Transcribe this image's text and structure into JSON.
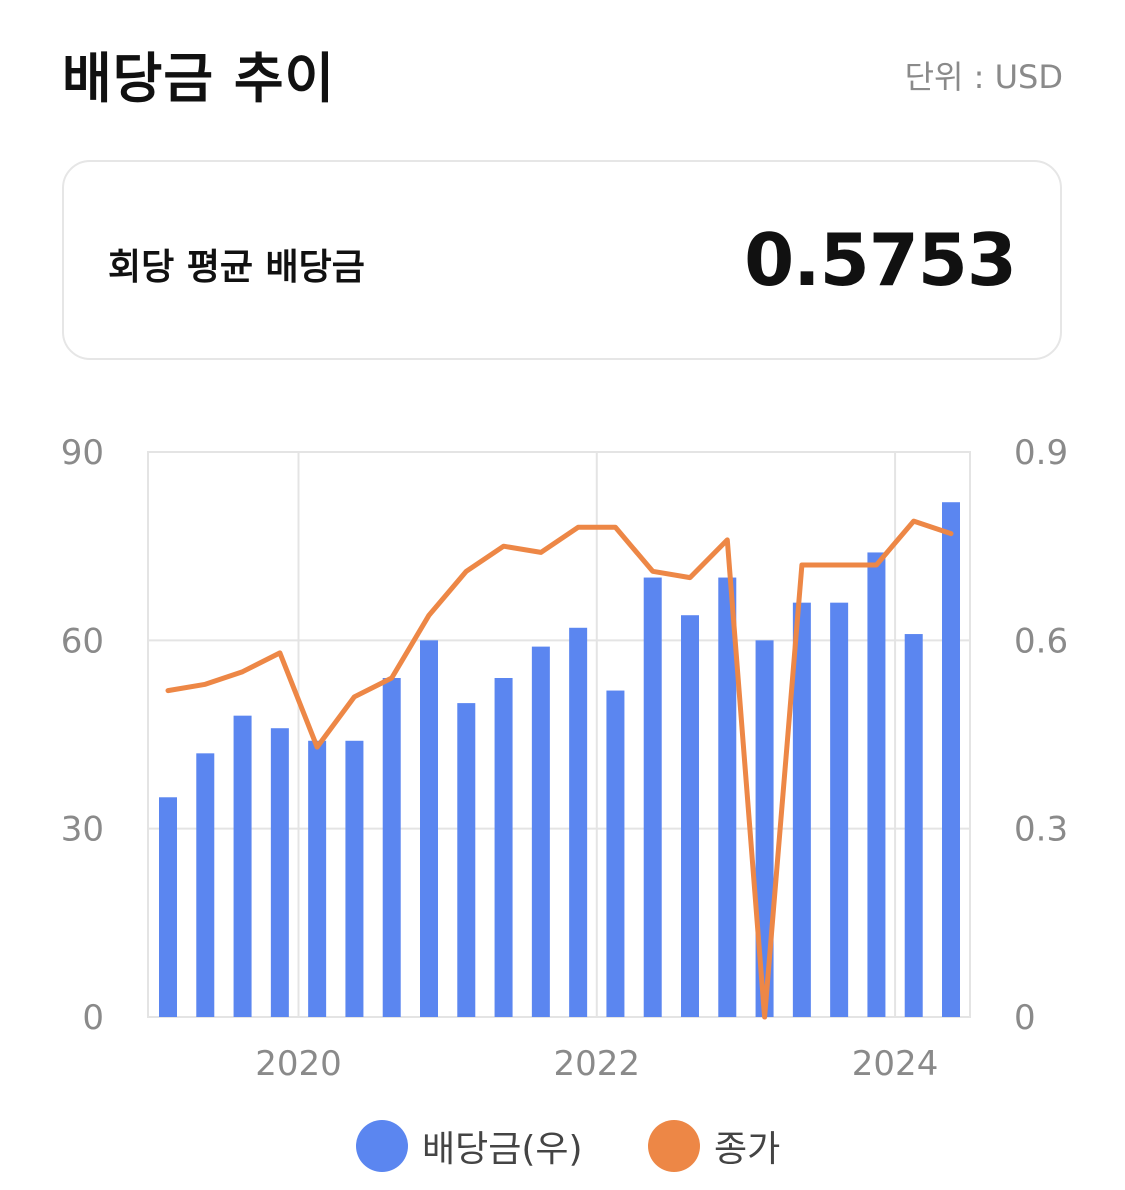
{
  "header": {
    "title": "배당금 추이",
    "unit": "단위 : USD"
  },
  "summary": {
    "label": "회당 평균 배당금",
    "value": "0.5753"
  },
  "legend": {
    "bar_label": "배당금(우)",
    "line_label": "종가"
  },
  "colors": {
    "bar": "#5b86f0",
    "line": "#ed8746",
    "grid": "#e4e4e4",
    "axis_text": "#8a8a8a"
  },
  "chart_data": {
    "type": "bar",
    "x_tick_labels": [
      "2020",
      "2022",
      "2024"
    ],
    "y_left": {
      "ticks": [
        "0",
        "30",
        "60",
        "90"
      ],
      "range": [
        0,
        90
      ]
    },
    "y_right": {
      "ticks": [
        "0",
        "0.3",
        "0.6",
        "0.9"
      ],
      "range": [
        0,
        0.9
      ]
    },
    "grid": true,
    "legend_position": "bottom",
    "series": [
      {
        "name": "배당금(우)",
        "kind": "bar",
        "axis": "right",
        "values": [
          0.35,
          0.42,
          0.48,
          0.46,
          0.44,
          0.44,
          0.54,
          0.6,
          0.5,
          0.54,
          0.59,
          0.62,
          0.52,
          0.7,
          0.64,
          0.7,
          0.6,
          0.66,
          0.66,
          0.74,
          0.61,
          0.82
        ]
      },
      {
        "name": "종가",
        "kind": "line",
        "axis": "left",
        "values": [
          52,
          53,
          55,
          58,
          43,
          51,
          54,
          64,
          71,
          75,
          74,
          78,
          78,
          71,
          70,
          76,
          0,
          72,
          72,
          72,
          79,
          77
        ]
      }
    ]
  }
}
